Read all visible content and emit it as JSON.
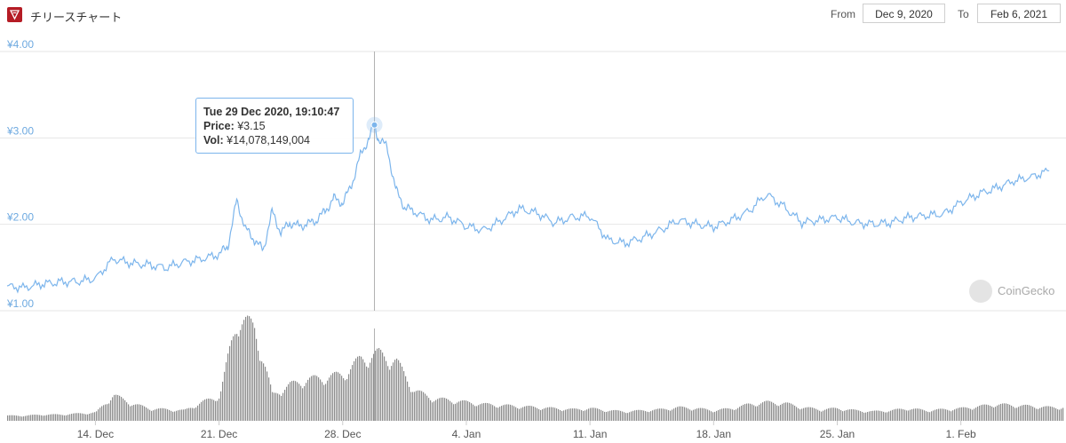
{
  "header": {
    "title": "チリースチャート",
    "from_label": "From",
    "from_value": "Dec 9, 2020",
    "to_label": "To",
    "to_value": "Feb 6, 2021"
  },
  "tooltip": {
    "date": "Tue 29 Dec 2020, 19:10:47",
    "price_label": "Price:",
    "price_value": "¥3.15",
    "vol_label": "Vol:",
    "vol_value": "¥14,078,149,004"
  },
  "watermark": "CoinGecko",
  "colors": {
    "line": "#7cb5ec",
    "volume": "#8c8c8c",
    "grid": "#e6e6e6",
    "axis_text": "#6da9e0",
    "brand": "#b51c25"
  },
  "chart_data": [
    {
      "type": "line",
      "x_unit": "date",
      "y_prefix": "¥",
      "ylim": [
        1.0,
        4.0
      ],
      "y_ticks": [
        "¥1.00",
        "¥2.00",
        "¥3.00",
        "¥4.00"
      ],
      "x_ticks": [
        "14. Dec",
        "21. Dec",
        "28. Dec",
        "4. Jan",
        "11. Jan",
        "18. Jan",
        "25. Jan",
        "1. Feb"
      ],
      "grid": true,
      "series": [
        {
          "points": [
            [
              "2020-12-09 00:00",
              1.28
            ],
            [
              "2020-12-10 00:00",
              1.27
            ],
            [
              "2020-12-11 00:00",
              1.31
            ],
            [
              "2020-12-12 00:00",
              1.33
            ],
            [
              "2020-12-13 00:00",
              1.34
            ],
            [
              "2020-12-14 00:00",
              1.37
            ],
            [
              "2020-12-15 00:00",
              1.6
            ],
            [
              "2020-12-16 00:00",
              1.55
            ],
            [
              "2020-12-17 00:00",
              1.53
            ],
            [
              "2020-12-18 00:00",
              1.5
            ],
            [
              "2020-12-19 00:00",
              1.56
            ],
            [
              "2020-12-20 00:00",
              1.6
            ],
            [
              "2020-12-21 00:00",
              1.65
            ],
            [
              "2020-12-21 12:00",
              1.75
            ],
            [
              "2020-12-22 00:00",
              2.27
            ],
            [
              "2020-12-22 12:00",
              1.95
            ],
            [
              "2020-12-23 00:00",
              1.82
            ],
            [
              "2020-12-23 12:00",
              1.7
            ],
            [
              "2020-12-24 00:00",
              2.15
            ],
            [
              "2020-12-24 12:00",
              1.9
            ],
            [
              "2020-12-25 00:00",
              2.02
            ],
            [
              "2020-12-25 12:00",
              1.98
            ],
            [
              "2020-12-26 00:00",
              2.0
            ],
            [
              "2020-12-26 12:00",
              2.05
            ],
            [
              "2020-12-27 00:00",
              2.15
            ],
            [
              "2020-12-27 12:00",
              2.3
            ],
            [
              "2020-12-28 00:00",
              2.25
            ],
            [
              "2020-12-28 12:00",
              2.45
            ],
            [
              "2020-12-29 00:00",
              2.8
            ],
            [
              "2020-12-29 12:00",
              3.0
            ],
            [
              "2020-12-29 19:10",
              3.15
            ],
            [
              "2020-12-30 00:00",
              3.0
            ],
            [
              "2020-12-30 12:00",
              2.9
            ],
            [
              "2020-12-31 00:00",
              2.4
            ],
            [
              "2020-12-31 12:00",
              2.2
            ],
            [
              "2021-01-01 00:00",
              2.15
            ],
            [
              "2021-01-02 00:00",
              2.05
            ],
            [
              "2021-01-03 00:00",
              2.08
            ],
            [
              "2021-01-04 00:00",
              1.98
            ],
            [
              "2021-01-05 00:00",
              1.93
            ],
            [
              "2021-01-06 00:00",
              2.05
            ],
            [
              "2021-01-07 00:00",
              2.18
            ],
            [
              "2021-01-08 00:00",
              2.13
            ],
            [
              "2021-01-09 00:00",
              2.02
            ],
            [
              "2021-01-10 00:00",
              2.08
            ],
            [
              "2021-01-11 00:00",
              2.1
            ],
            [
              "2021-01-12 00:00",
              1.82
            ],
            [
              "2021-01-13 00:00",
              1.78
            ],
            [
              "2021-01-14 00:00",
              1.85
            ],
            [
              "2021-01-15 00:00",
              1.93
            ],
            [
              "2021-01-16 00:00",
              2.05
            ],
            [
              "2021-01-17 00:00",
              2.0
            ],
            [
              "2021-01-18 00:00",
              1.97
            ],
            [
              "2021-01-19 00:00",
              2.05
            ],
            [
              "2021-01-20 00:00",
              2.15
            ],
            [
              "2021-01-21 00:00",
              2.35
            ],
            [
              "2021-01-22 00:00",
              2.2
            ],
            [
              "2021-01-23 00:00",
              2.02
            ],
            [
              "2021-01-24 00:00",
              2.05
            ],
            [
              "2021-01-25 00:00",
              2.08
            ],
            [
              "2021-01-26 00:00",
              2.02
            ],
            [
              "2021-01-27 00:00",
              2.0
            ],
            [
              "2021-01-28 00:00",
              2.02
            ],
            [
              "2021-01-29 00:00",
              2.08
            ],
            [
              "2021-01-30 00:00",
              2.1
            ],
            [
              "2021-01-31 00:00",
              2.12
            ],
            [
              "2021-02-01 00:00",
              2.25
            ],
            [
              "2021-02-02 00:00",
              2.35
            ],
            [
              "2021-02-03 00:00",
              2.42
            ],
            [
              "2021-02-04 00:00",
              2.5
            ],
            [
              "2021-02-05 00:00",
              2.55
            ],
            [
              "2021-02-06 00:00",
              2.62
            ]
          ]
        }
      ]
    },
    {
      "type": "bar",
      "title": "",
      "x_unit": "date",
      "series": [
        {
          "points": [
            [
              "2020-12-09",
              0.05
            ],
            [
              "2020-12-10",
              0.05
            ],
            [
              "2020-12-11",
              0.06
            ],
            [
              "2020-12-12",
              0.06
            ],
            [
              "2020-12-13",
              0.07
            ],
            [
              "2020-12-14",
              0.08
            ],
            [
              "2020-12-15",
              0.25
            ],
            [
              "2020-12-16",
              0.17
            ],
            [
              "2020-12-17",
              0.12
            ],
            [
              "2020-12-18",
              0.11
            ],
            [
              "2020-12-19",
              0.1
            ],
            [
              "2020-12-20",
              0.18
            ],
            [
              "2020-12-21",
              0.24
            ],
            [
              "2020-12-22",
              1.0
            ],
            [
              "2020-12-23",
              0.9
            ],
            [
              "2020-12-24",
              0.25
            ],
            [
              "2020-12-25",
              0.35
            ],
            [
              "2020-12-26",
              0.4
            ],
            [
              "2020-12-27",
              0.42
            ],
            [
              "2020-12-28",
              0.45
            ],
            [
              "2020-12-29",
              0.6
            ],
            [
              "2020-12-30",
              0.65
            ],
            [
              "2020-12-31",
              0.58
            ],
            [
              "2021-01-01",
              0.3
            ],
            [
              "2021-01-02",
              0.22
            ],
            [
              "2021-01-03",
              0.2
            ],
            [
              "2021-01-04",
              0.18
            ],
            [
              "2021-01-05",
              0.16
            ],
            [
              "2021-01-06",
              0.15
            ],
            [
              "2021-01-07",
              0.14
            ],
            [
              "2021-01-08",
              0.13
            ],
            [
              "2021-01-09",
              0.12
            ],
            [
              "2021-01-10",
              0.11
            ],
            [
              "2021-01-11",
              0.12
            ],
            [
              "2021-01-12",
              0.1
            ],
            [
              "2021-01-13",
              0.09
            ],
            [
              "2021-01-14",
              0.1
            ],
            [
              "2021-01-15",
              0.11
            ],
            [
              "2021-01-16",
              0.13
            ],
            [
              "2021-01-17",
              0.12
            ],
            [
              "2021-01-18",
              0.1
            ],
            [
              "2021-01-19",
              0.12
            ],
            [
              "2021-01-20",
              0.16
            ],
            [
              "2021-01-21",
              0.18
            ],
            [
              "2021-01-22",
              0.17
            ],
            [
              "2021-01-23",
              0.13
            ],
            [
              "2021-01-24",
              0.11
            ],
            [
              "2021-01-25",
              0.12
            ],
            [
              "2021-01-26",
              0.1
            ],
            [
              "2021-01-27",
              0.09
            ],
            [
              "2021-01-28",
              0.1
            ],
            [
              "2021-01-29",
              0.12
            ],
            [
              "2021-01-30",
              0.1
            ],
            [
              "2021-01-31",
              0.11
            ],
            [
              "2021-02-01",
              0.12
            ],
            [
              "2021-02-02",
              0.14
            ],
            [
              "2021-02-03",
              0.16
            ],
            [
              "2021-02-04",
              0.15
            ],
            [
              "2021-02-05",
              0.14
            ],
            [
              "2021-02-06",
              0.13
            ]
          ]
        }
      ]
    }
  ]
}
